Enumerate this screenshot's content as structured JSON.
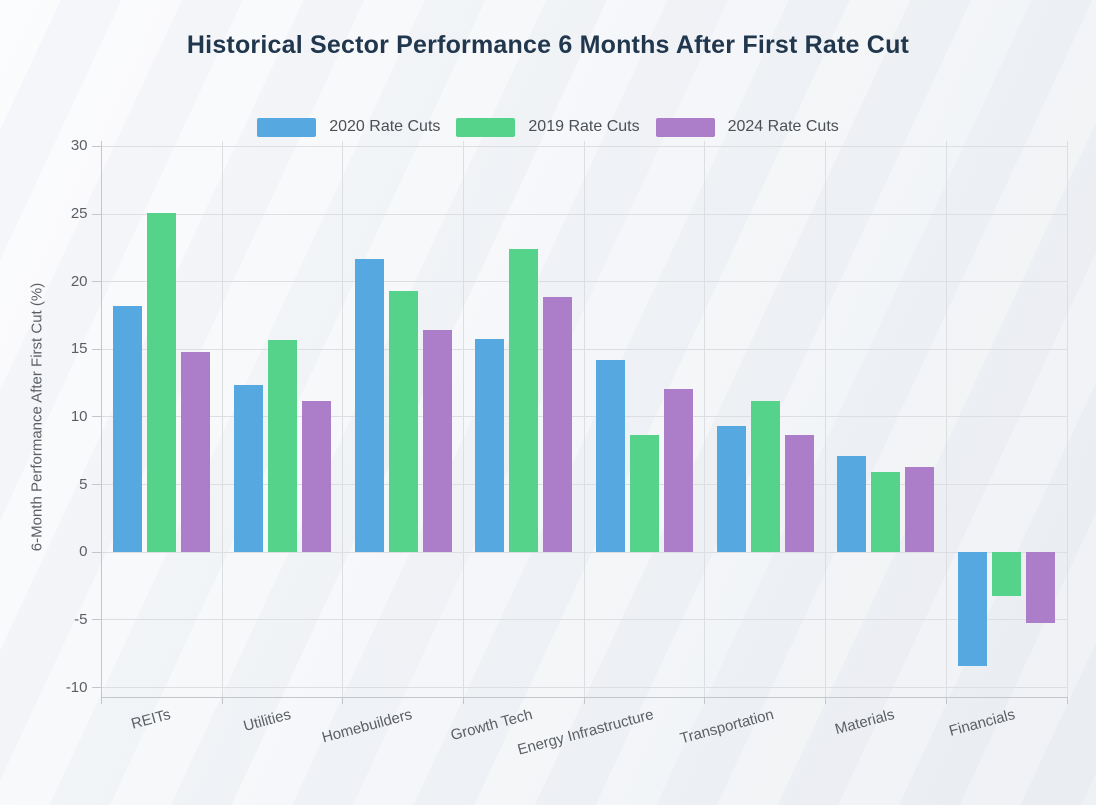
{
  "page": {
    "title": "Historical Sector Performance 6 Months After First Rate Cut"
  },
  "chart_data": {
    "type": "bar",
    "title": "Historical Sector Performance 6 Months After First Rate Cut",
    "categories": [
      "REITs",
      "Utilities",
      "Homebuilders",
      "Growth Tech",
      "Energy Infrastructure",
      "Transportation",
      "Materials",
      "Financials"
    ],
    "series": [
      {
        "name": "2020 Rate Cuts",
        "color": "#56A9E0",
        "values": [
          18.2,
          12.4,
          21.7,
          15.8,
          14.2,
          9.3,
          7.1,
          -8.4
        ]
      },
      {
        "name": "2019 Rate Cuts",
        "color": "#55D38B",
        "values": [
          25.1,
          15.7,
          19.3,
          22.4,
          8.7,
          11.2,
          5.9,
          -3.2
        ]
      },
      {
        "name": "2024 Rate Cuts",
        "color": "#AC7DC9",
        "values": [
          14.8,
          11.2,
          16.4,
          18.9,
          12.1,
          8.7,
          6.3,
          -5.2
        ]
      }
    ],
    "xlabel": "",
    "ylabel": "6-Month Performance After First Cut (%)",
    "ylim": [
      -10.7,
      30.4
    ],
    "yticks": [
      -10,
      -5,
      0,
      5,
      10,
      15,
      20,
      25,
      30
    ],
    "grid": true,
    "legend_position": "top-center"
  }
}
